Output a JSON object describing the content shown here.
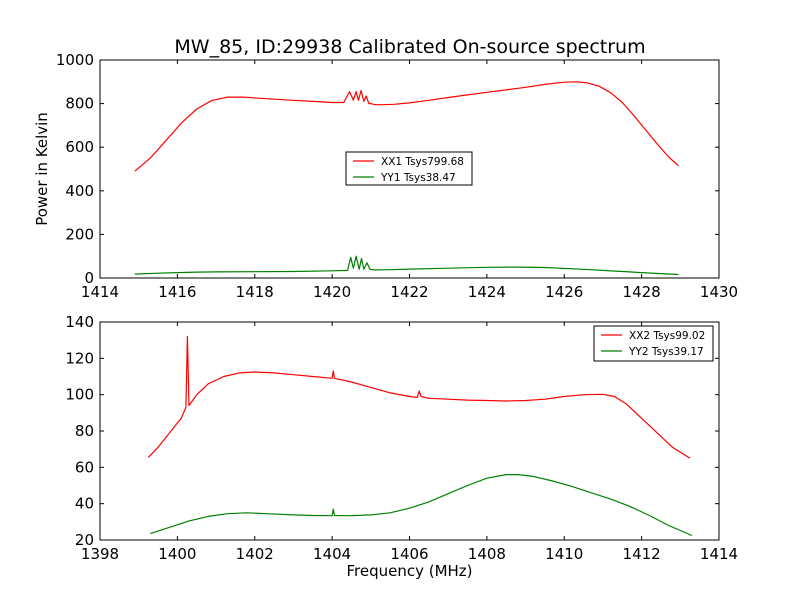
{
  "figure": {
    "title": "MW_85, ID:29938 Calibrated On-source spectrum"
  },
  "chart_data": [
    {
      "type": "line",
      "title": "MW_85, ID:29938 Calibrated On-source spectrum",
      "xlabel": "",
      "ylabel": "Power in Kelvin",
      "xlim": [
        1414,
        1430
      ],
      "ylim": [
        0,
        1000
      ],
      "xticks": [
        1414,
        1416,
        1418,
        1420,
        1422,
        1424,
        1426,
        1428,
        1430
      ],
      "yticks": [
        0,
        200,
        400,
        600,
        800,
        1000
      ],
      "grid": false,
      "legend_position": "center",
      "series": [
        {
          "name": "XX1 Tsys799.68",
          "color": "#ff0000",
          "x": [
            1414.9,
            1415.3,
            1415.7,
            1416.1,
            1416.5,
            1416.9,
            1417.3,
            1417.7,
            1418.1,
            1418.5,
            1419.0,
            1419.5,
            1420.0,
            1420.3,
            1420.45,
            1420.55,
            1420.62,
            1420.68,
            1420.75,
            1420.82,
            1420.88,
            1420.95,
            1421.0,
            1421.1,
            1421.3,
            1421.6,
            1422.0,
            1422.5,
            1423.0,
            1423.5,
            1424.0,
            1424.5,
            1425.0,
            1425.5,
            1426.0,
            1426.3,
            1426.6,
            1426.9,
            1427.2,
            1427.5,
            1427.8,
            1428.1,
            1428.4,
            1428.7,
            1428.95
          ],
          "y": [
            490,
            550,
            630,
            710,
            775,
            815,
            830,
            830,
            825,
            820,
            815,
            810,
            805,
            805,
            855,
            815,
            855,
            815,
            860,
            810,
            835,
            800,
            800,
            795,
            795,
            797,
            803,
            815,
            828,
            840,
            852,
            863,
            875,
            888,
            898,
            900,
            895,
            880,
            850,
            805,
            745,
            680,
            615,
            555,
            515
          ]
        },
        {
          "name": "YY1 Tsys38.47",
          "color": "#008000",
          "x": [
            1414.9,
            1415.5,
            1416.0,
            1416.5,
            1417.0,
            1418.0,
            1419.0,
            1420.0,
            1420.4,
            1420.48,
            1420.55,
            1420.62,
            1420.7,
            1420.76,
            1420.82,
            1420.9,
            1420.98,
            1421.1,
            1421.5,
            1422.0,
            1423.0,
            1424.0,
            1424.8,
            1425.5,
            1426.5,
            1427.5,
            1428.0,
            1428.5,
            1428.95
          ],
          "y": [
            18,
            22,
            25,
            27,
            28,
            29,
            30,
            33,
            35,
            95,
            45,
            100,
            40,
            90,
            40,
            70,
            40,
            37,
            38,
            41,
            45,
            49,
            50,
            48,
            40,
            30,
            25,
            20,
            16
          ]
        }
      ]
    },
    {
      "type": "line",
      "title": "",
      "xlabel": "Frequency (MHz)",
      "ylabel": "",
      "xlim": [
        1398,
        1414
      ],
      "ylim": [
        20,
        140
      ],
      "xticks": [
        1398,
        1400,
        1402,
        1404,
        1406,
        1408,
        1410,
        1412,
        1414
      ],
      "yticks": [
        20,
        40,
        60,
        80,
        100,
        120,
        140
      ],
      "grid": false,
      "legend_position": "top-right",
      "series": [
        {
          "name": "XX2 Tsys99.02",
          "color": "#ff0000",
          "x": [
            1399.25,
            1399.5,
            1399.8,
            1400.1,
            1400.22,
            1400.26,
            1400.3,
            1400.5,
            1400.8,
            1401.2,
            1401.6,
            1402.0,
            1402.5,
            1403.0,
            1403.5,
            1404.0,
            1404.03,
            1404.06,
            1404.5,
            1405.0,
            1405.5,
            1406.0,
            1406.2,
            1406.25,
            1406.3,
            1406.5,
            1407.0,
            1407.5,
            1408.0,
            1408.5,
            1409.0,
            1409.5,
            1410.0,
            1410.5,
            1411.0,
            1411.3,
            1411.6,
            1412.0,
            1412.4,
            1412.8,
            1413.25
          ],
          "y": [
            65.5,
            71,
            79,
            87,
            93,
            132,
            94,
            100,
            106,
            110,
            112,
            112.5,
            112,
            111,
            110,
            109,
            113,
            109,
            107,
            104,
            101,
            99,
            98.5,
            102,
            99,
            98,
            97.5,
            97,
            96.8,
            96.5,
            96.8,
            97.5,
            99,
            100,
            100.2,
            99,
            95,
            87,
            79,
            71,
            65
          ]
        },
        {
          "name": "YY2 Tsys39.17",
          "color": "#008000",
          "x": [
            1399.3,
            1399.8,
            1400.3,
            1400.8,
            1401.3,
            1401.8,
            1402.3,
            1403.0,
            1403.5,
            1404.0,
            1404.03,
            1404.06,
            1404.5,
            1405.0,
            1405.5,
            1406.0,
            1406.5,
            1407.0,
            1407.5,
            1408.0,
            1408.5,
            1408.8,
            1409.2,
            1409.7,
            1410.2,
            1410.7,
            1411.2,
            1411.7,
            1412.2,
            1412.7,
            1413.3
          ],
          "y": [
            23.5,
            27,
            30.5,
            33,
            34.5,
            35,
            34.5,
            33.8,
            33.5,
            33.4,
            37,
            33.5,
            33.4,
            33.8,
            35,
            37.5,
            41,
            45.5,
            50,
            54,
            56,
            56,
            55,
            52.5,
            49.5,
            46,
            42.5,
            38.5,
            33.5,
            28,
            22.5
          ]
        }
      ]
    }
  ]
}
